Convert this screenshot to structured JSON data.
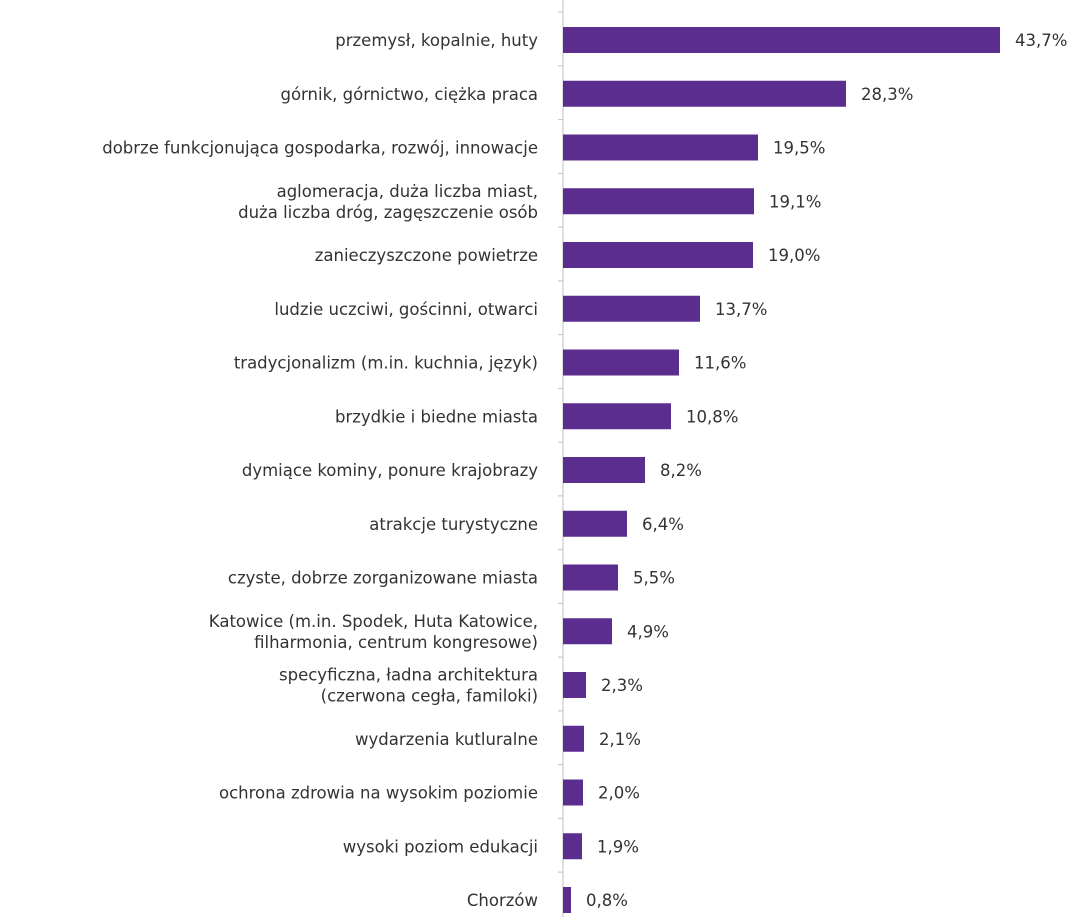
{
  "chart_data": {
    "type": "bar",
    "orientation": "horizontal",
    "title": "",
    "xlabel": "",
    "ylabel": "",
    "value_suffix": "%",
    "decimal_separator": ",",
    "xlim": [
      0,
      45
    ],
    "grid": false,
    "legend": "none",
    "bar_color": "#5b2d8e",
    "axis_color": "#bfbfbf",
    "categories": [
      [
        "przemysł, kopalnie, huty"
      ],
      [
        "górnik, górnictwo, ciężka praca"
      ],
      [
        "dobrze funkcjonująca gospodarka, rozwój, innowacje"
      ],
      [
        "aglomeracja, duża liczba miast,",
        "duża liczba dróg, zagęszczenie osób"
      ],
      [
        "zanieczyszczone powietrze"
      ],
      [
        "ludzie uczciwi, gościnni, otwarci"
      ],
      [
        "tradycjonalizm (m.in. kuchnia, język)"
      ],
      [
        "brzydkie i biedne miasta"
      ],
      [
        "dymiące kominy, ponure krajobrazy"
      ],
      [
        "atrakcje turystyczne"
      ],
      [
        "czyste, dobrze zorganizowane miasta"
      ],
      [
        "Katowice (m.in. Spodek, Huta Katowice,",
        "filharmonia, centrum kongresowe)"
      ],
      [
        "specyficzna, ładna architektura",
        "(czerwona cegła, familoki)"
      ],
      [
        "wydarzenia kutluralne"
      ],
      [
        "ochrona zdrowia na wysokim poziomie"
      ],
      [
        "wysoki poziom edukacji"
      ],
      [
        "Chorzów"
      ]
    ],
    "values": [
      43.7,
      28.3,
      19.5,
      19.1,
      19.0,
      13.7,
      11.6,
      10.8,
      8.2,
      6.4,
      5.5,
      4.9,
      2.3,
      2.1,
      2.0,
      1.9,
      0.8
    ]
  }
}
